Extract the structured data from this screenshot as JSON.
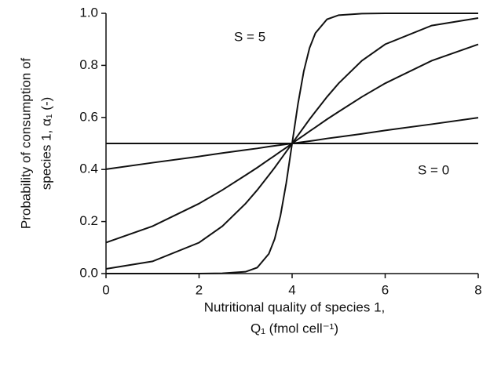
{
  "chart_data": {
    "type": "line",
    "x_label": [
      "Nutritional quality of species 1,",
      "Q₁ (fmol cell⁻¹)"
    ],
    "y_label": [
      "Probability of consumption of",
      "species 1, α₁ (-)"
    ],
    "annotations": [
      "S = 5",
      "S = 0"
    ],
    "x": [
      0,
      1,
      2,
      2.5,
      3,
      3.25,
      3.5,
      3.625,
      3.75,
      3.875,
      4,
      4.125,
      4.25,
      4.375,
      4.5,
      4.75,
      5,
      5.5,
      6,
      7,
      8
    ],
    "series": [
      {
        "color": "#111111",
        "values": [
          0,
          0,
          0,
          0.001,
          0.007,
          0.023,
          0.076,
          0.133,
          0.223,
          0.349,
          0.5,
          0.651,
          0.777,
          0.867,
          0.924,
          0.977,
          0.993,
          0.999,
          1,
          1,
          1
        ]
      },
      {
        "color": "#111111",
        "values": [
          0.018,
          0.047,
          0.119,
          0.182,
          0.269,
          0.321,
          0.378,
          0.407,
          0.438,
          0.469,
          0.5,
          0.531,
          0.562,
          0.593,
          0.622,
          0.679,
          0.731,
          0.818,
          0.881,
          0.953,
          0.982
        ]
      },
      {
        "color": "#111111",
        "values": [
          0.119,
          0.182,
          0.269,
          0.321,
          0.378,
          0.407,
          0.438,
          0.453,
          0.469,
          0.484,
          0.5,
          0.516,
          0.531,
          0.547,
          0.562,
          0.593,
          0.622,
          0.679,
          0.731,
          0.818,
          0.881
        ]
      },
      {
        "color": "#111111",
        "values": [
          0.401,
          0.426,
          0.45,
          0.463,
          0.475,
          0.481,
          0.488,
          0.491,
          0.494,
          0.497,
          0.5,
          0.503,
          0.506,
          0.509,
          0.512,
          0.519,
          0.525,
          0.537,
          0.55,
          0.574,
          0.599
        ]
      },
      {
        "color": "#111111",
        "values": [
          0.5,
          0.5,
          0.5,
          0.5,
          0.5,
          0.5,
          0.5,
          0.5,
          0.5,
          0.5,
          0.5,
          0.5,
          0.5,
          0.5,
          0.5,
          0.5,
          0.5,
          0.5,
          0.5,
          0.5,
          0.5
        ]
      }
    ],
    "xlim": [
      0,
      8
    ],
    "xticks": [
      0,
      2,
      4,
      6,
      8
    ],
    "ylim": [
      0,
      1
    ],
    "yticks": [
      {
        "value": 0,
        "label": "0.0"
      },
      0.2,
      0.4,
      0.6,
      0.8,
      {
        "value": 1,
        "label": "1.0"
      }
    ]
  }
}
